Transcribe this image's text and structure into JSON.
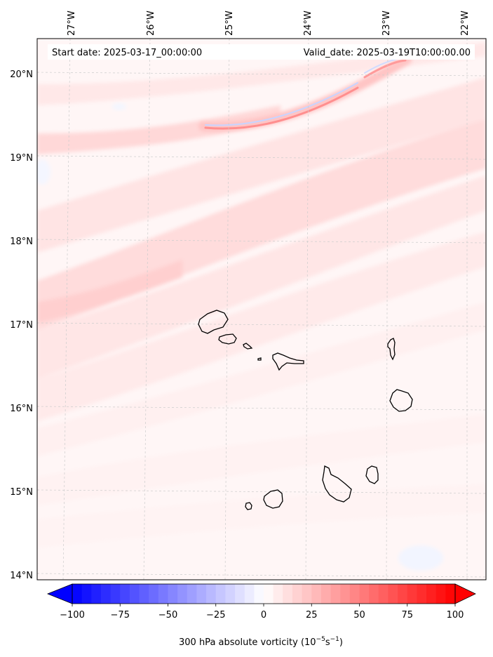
{
  "map": {
    "start_date_text": "Start date: 2025-03-17_00:00:00",
    "valid_date_text": "Valid_date: 2025-03-19T10:00:00.00",
    "lon_ticks": [
      "27°W",
      "26°W",
      "25°W",
      "24°W",
      "23°W",
      "22°W"
    ],
    "lat_ticks": [
      "20°N",
      "19°N",
      "18°N",
      "17°N",
      "16°N",
      "15°N",
      "14°N"
    ],
    "gridlines": true,
    "coastline_color": "#000000"
  },
  "colorbar": {
    "ticks": [
      "−100",
      "−75",
      "−50",
      "−25",
      "0",
      "25",
      "50",
      "75",
      "100"
    ],
    "tick_values": [
      -100,
      -75,
      -50,
      -25,
      0,
      25,
      50,
      75,
      100
    ],
    "range": [
      -100,
      100
    ],
    "extend": "both",
    "colormap": "bwr",
    "label_main": "300 hPa absolute vorticity (10",
    "label_exp1": "−5",
    "label_mid": "s",
    "label_exp2": "−1",
    "label_end": ")"
  }
}
